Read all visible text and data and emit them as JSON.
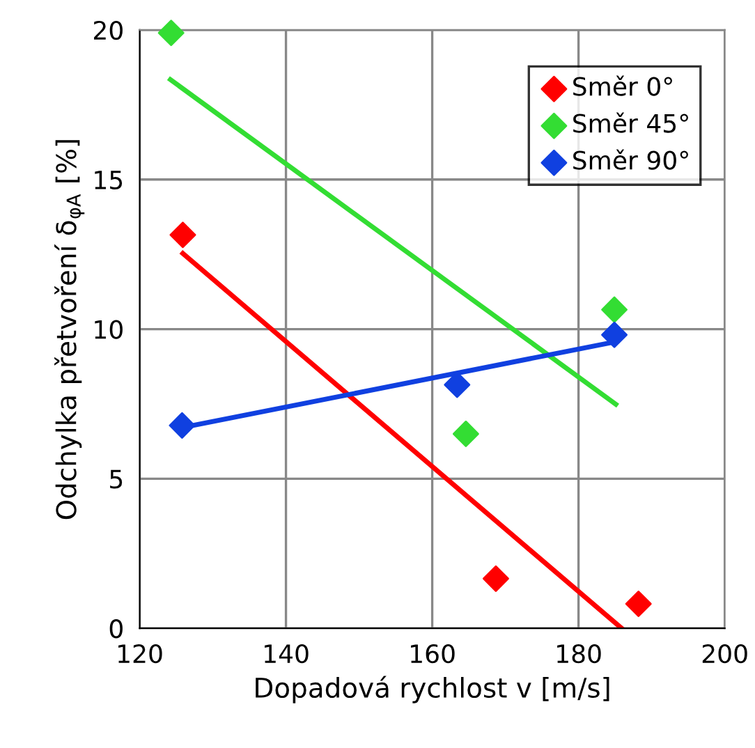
{
  "chart_data": {
    "type": "scatter",
    "xlabel": "Dopadová rychlost v [m/s]",
    "ylabel": "Odchylka přetvoření δ$_{φA}$ [%]",
    "xlim": [
      120,
      200
    ],
    "xticks": [
      120,
      140,
      160,
      180,
      200
    ],
    "ylim": [
      0,
      20
    ],
    "yticks": [
      0,
      5,
      10,
      15,
      20
    ],
    "grid": true,
    "legend": "top right",
    "marker": "diamond",
    "series": [
      {
        "name": "Směr 0°",
        "color": "#ff0000",
        "x": [
          125.9,
          168.7,
          188.2
        ],
        "values": [
          13.15,
          1.66,
          0.82
        ]
      },
      {
        "name": "Směr 45°",
        "color": "#33dd33",
        "x": [
          124.3,
          164.6,
          184.9
        ],
        "values": [
          19.9,
          6.5,
          10.65
        ]
      },
      {
        "name": "Směr 90°",
        "color": "#1040e0",
        "x": [
          125.8,
          163.4,
          184.9
        ],
        "values": [
          6.78,
          8.14,
          9.81
        ]
      },
      {
        "type": "line",
        "marker": "none",
        "color": "#ff0000",
        "x": [
          125.9,
          185.9
        ],
        "values": [
          12.53,
          0
        ]
      },
      {
        "type": "line",
        "marker": "none",
        "color": "#33dd33",
        "x": [
          124.2,
          185.1
        ],
        "values": [
          18.34,
          7.49
        ]
      },
      {
        "type": "line",
        "marker": "none",
        "color": "#1040e0",
        "x": [
          125.8,
          184.9
        ],
        "values": [
          6.71,
          9.57
        ]
      }
    ]
  }
}
